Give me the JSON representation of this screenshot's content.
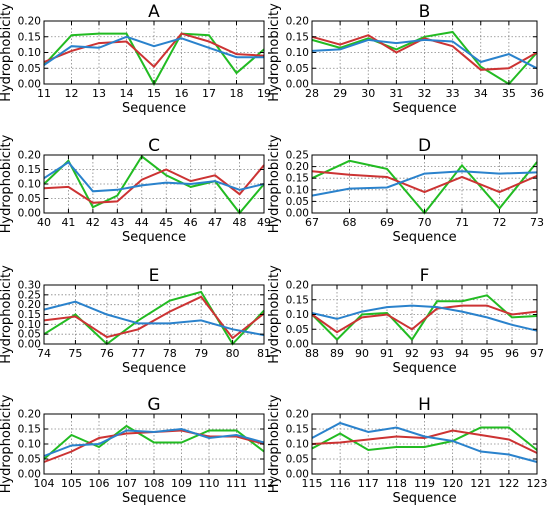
{
  "colors": {
    "green": "#22bb22",
    "red": "#cc3333",
    "blue": "#2a82cc",
    "grid": "#888888"
  },
  "chart_data": [
    {
      "type": "line",
      "title": "A",
      "xlabel": "Sequence",
      "ylabel": "Hydrophobicity",
      "x": [
        11,
        12,
        13,
        14,
        15,
        16,
        17,
        18,
        19
      ],
      "ylim": [
        0,
        0.2
      ],
      "yticks": [
        "0.00",
        "0.05",
        "0.10",
        "0.15",
        "0.20"
      ],
      "grid": true,
      "series": [
        {
          "color": "green",
          "values": [
            0.06,
            0.155,
            0.16,
            0.16,
            0.0,
            0.16,
            0.155,
            0.035,
            0.11
          ]
        },
        {
          "color": "red",
          "values": [
            0.07,
            0.105,
            0.13,
            0.135,
            0.055,
            0.16,
            0.135,
            0.095,
            0.09
          ]
        },
        {
          "color": "blue",
          "values": [
            0.06,
            0.12,
            0.115,
            0.15,
            0.12,
            0.145,
            0.115,
            0.085,
            0.085
          ]
        }
      ]
    },
    {
      "type": "line",
      "title": "B",
      "xlabel": "Sequence",
      "ylabel": "Hydrophobicity",
      "x": [
        28,
        29,
        30,
        31,
        32,
        33,
        34,
        35,
        36
      ],
      "ylim": [
        0,
        0.2
      ],
      "yticks": [
        "0.00",
        "0.05",
        "0.10",
        "0.15",
        "0.20"
      ],
      "grid": true,
      "series": [
        {
          "color": "green",
          "values": [
            0.14,
            0.115,
            0.145,
            0.11,
            0.15,
            0.165,
            0.055,
            0.0,
            0.1
          ]
        },
        {
          "color": "red",
          "values": [
            0.15,
            0.125,
            0.155,
            0.1,
            0.145,
            0.12,
            0.045,
            0.05,
            0.1
          ]
        },
        {
          "color": "blue",
          "values": [
            0.105,
            0.11,
            0.14,
            0.13,
            0.14,
            0.135,
            0.07,
            0.095,
            0.05
          ]
        }
      ]
    },
    {
      "type": "line",
      "title": "C",
      "xlabel": "Sequence",
      "ylabel": "Hydrophobicity",
      "x": [
        40,
        41,
        42,
        43,
        44,
        45,
        46,
        47,
        48,
        49
      ],
      "ylim": [
        0,
        0.2
      ],
      "yticks": [
        "0.00",
        "0.05",
        "0.10",
        "0.15",
        "0.20"
      ],
      "grid": true,
      "series": [
        {
          "color": "green",
          "values": [
            0.1,
            0.18,
            0.02,
            0.06,
            0.195,
            0.13,
            0.09,
            0.11,
            0.0,
            0.1
          ]
        },
        {
          "color": "red",
          "values": [
            0.085,
            0.09,
            0.035,
            0.04,
            0.115,
            0.15,
            0.11,
            0.13,
            0.065,
            0.165
          ]
        },
        {
          "color": "blue",
          "values": [
            0.12,
            0.175,
            0.075,
            0.08,
            0.095,
            0.105,
            0.1,
            0.11,
            0.08,
            0.1
          ]
        }
      ]
    },
    {
      "type": "line",
      "title": "D",
      "xlabel": "Sequence",
      "ylabel": "Hydrophobicity",
      "x": [
        67,
        68,
        69,
        70,
        71,
        72,
        73
      ],
      "ylim": [
        0,
        0.25
      ],
      "yticks": [
        "0.00",
        "0.05",
        "0.10",
        "0.15",
        "0.20",
        "0.25"
      ],
      "grid": true,
      "series": [
        {
          "color": "green",
          "values": [
            0.15,
            0.225,
            0.19,
            0.0,
            0.205,
            0.02,
            0.22
          ]
        },
        {
          "color": "red",
          "values": [
            0.18,
            0.165,
            0.155,
            0.09,
            0.155,
            0.09,
            0.16
          ]
        },
        {
          "color": "blue",
          "values": [
            0.075,
            0.105,
            0.11,
            0.17,
            0.18,
            0.17,
            0.175
          ]
        }
      ]
    },
    {
      "type": "line",
      "title": "E",
      "xlabel": "Sequence",
      "ylabel": "Hydrophobicity",
      "x": [
        74,
        75,
        76,
        77,
        78,
        79,
        80,
        81
      ],
      "ylim": [
        0,
        0.3
      ],
      "yticks": [
        "0.00",
        "0.05",
        "0.10",
        "0.15",
        "0.20",
        "0.25",
        "0.30"
      ],
      "grid": true,
      "series": [
        {
          "color": "green",
          "values": [
            0.05,
            0.15,
            0.0,
            0.12,
            0.22,
            0.265,
            0.0,
            0.17
          ]
        },
        {
          "color": "red",
          "values": [
            0.12,
            0.14,
            0.035,
            0.075,
            0.165,
            0.24,
            0.03,
            0.155
          ]
        },
        {
          "color": "blue",
          "values": [
            0.175,
            0.215,
            0.15,
            0.105,
            0.105,
            0.12,
            0.075,
            0.045
          ]
        }
      ]
    },
    {
      "type": "line",
      "title": "F",
      "xlabel": "Sequence",
      "ylabel": "Hydrophobicity",
      "x": [
        88,
        89,
        90,
        91,
        92,
        93,
        94,
        95,
        96,
        97
      ],
      "ylim": [
        0,
        0.2
      ],
      "yticks": [
        "0.00",
        "0.05",
        "0.10",
        "0.15",
        "0.20"
      ],
      "grid": true,
      "series": [
        {
          "color": "green",
          "values": [
            0.1,
            0.015,
            0.1,
            0.105,
            0.015,
            0.145,
            0.145,
            0.165,
            0.09,
            0.095
          ]
        },
        {
          "color": "red",
          "values": [
            0.1,
            0.04,
            0.09,
            0.1,
            0.05,
            0.12,
            0.13,
            0.13,
            0.1,
            0.11
          ]
        },
        {
          "color": "blue",
          "values": [
            0.105,
            0.085,
            0.11,
            0.125,
            0.13,
            0.125,
            0.11,
            0.09,
            0.065,
            0.045
          ]
        }
      ]
    },
    {
      "type": "line",
      "title": "G",
      "xlabel": "Sequence",
      "ylabel": "Hydrophobicity",
      "x": [
        104,
        105,
        106,
        107,
        108,
        109,
        110,
        111,
        112
      ],
      "ylim": [
        0,
        0.2
      ],
      "yticks": [
        "0.00",
        "0.05",
        "0.10",
        "0.15",
        "0.20"
      ],
      "grid": true,
      "series": [
        {
          "color": "green",
          "values": [
            0.05,
            0.13,
            0.09,
            0.16,
            0.105,
            0.105,
            0.145,
            0.145,
            0.075
          ]
        },
        {
          "color": "red",
          "values": [
            0.04,
            0.075,
            0.12,
            0.135,
            0.14,
            0.145,
            0.125,
            0.125,
            0.1
          ]
        },
        {
          "color": "blue",
          "values": [
            0.06,
            0.095,
            0.1,
            0.145,
            0.14,
            0.15,
            0.12,
            0.13,
            0.105
          ]
        }
      ]
    },
    {
      "type": "line",
      "title": "H",
      "xlabel": "Sequence",
      "ylabel": "Hydrophobicity",
      "x": [
        115,
        116,
        117,
        118,
        119,
        120,
        121,
        122,
        123
      ],
      "ylim": [
        0,
        0.2
      ],
      "yticks": [
        "0.00",
        "0.05",
        "0.10",
        "0.15",
        "0.20"
      ],
      "grid": true,
      "series": [
        {
          "color": "green",
          "values": [
            0.085,
            0.135,
            0.08,
            0.09,
            0.09,
            0.11,
            0.155,
            0.155,
            0.08
          ]
        },
        {
          "color": "red",
          "values": [
            0.1,
            0.105,
            0.115,
            0.125,
            0.12,
            0.145,
            0.13,
            0.115,
            0.07
          ]
        },
        {
          "color": "blue",
          "values": [
            0.12,
            0.17,
            0.14,
            0.155,
            0.125,
            0.11,
            0.075,
            0.065,
            0.04
          ]
        }
      ]
    }
  ]
}
